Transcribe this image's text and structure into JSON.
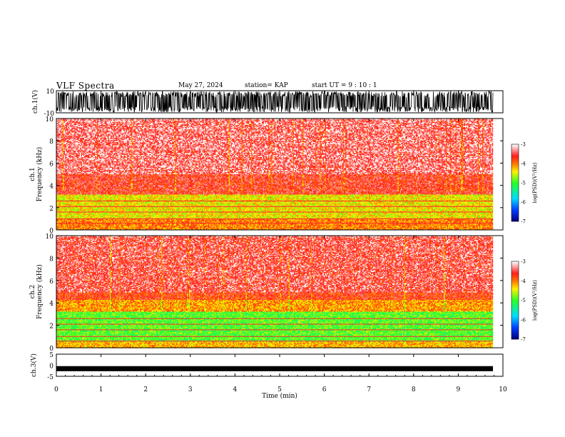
{
  "header": {
    "title": "VLF Spectra",
    "date": "May 27, 2024",
    "station": "station= KAP",
    "start": "start  UT  =   9  : 10 : 1"
  },
  "chart_data": [
    {
      "type": "line",
      "panel": "waveform-ch1",
      "ylabel": "ch.1(V)",
      "ylim": [
        -10,
        10
      ],
      "yticks": [
        "10",
        "-10"
      ],
      "xlim": [
        0,
        10
      ],
      "description_of_signal": "dense noise filling most of range"
    },
    {
      "type": "heatmap",
      "panel": "spectrogram-ch1",
      "ylabel_line1": "ch.1",
      "ylabel_line2": "Frequency  (kHz)",
      "ylim": [
        0,
        10
      ],
      "yticks": [
        "0",
        "2",
        "4",
        "6",
        "8",
        "10"
      ],
      "xlim": [
        0,
        10
      ],
      "colorbar": {
        "label": "log(PSD)(V²/Hz)",
        "range": [
          -7,
          -3
        ],
        "ticks": [
          "-3",
          "-4",
          "-5",
          "-6",
          "-7"
        ]
      },
      "bands_khz": [
        {
          "from": 0,
          "to": 1.0,
          "level": -4.0
        },
        {
          "from": 1.0,
          "to": 3.2,
          "level": -4.4
        },
        {
          "from": 3.2,
          "to": 10,
          "level": -3.6
        }
      ]
    },
    {
      "type": "heatmap",
      "panel": "spectrogram-ch2",
      "ylabel_line1": "ch.2",
      "ylabel_line2": "Frequency  (kHz)",
      "ylim": [
        0,
        10
      ],
      "yticks": [
        "0",
        "2",
        "4",
        "6",
        "8",
        "10"
      ],
      "xlim": [
        0,
        10
      ],
      "colorbar": {
        "label": "log(PSD)(V²/Hz)",
        "range": [
          -7,
          -3
        ],
        "ticks": [
          "-3",
          "-4",
          "-5",
          "-6",
          "-7"
        ]
      },
      "bands_khz": [
        {
          "from": 0,
          "to": 0.6,
          "level": -4.2
        },
        {
          "from": 0.6,
          "to": 3.3,
          "level": -4.9
        },
        {
          "from": 3.3,
          "to": 4.3,
          "level": -4.1
        },
        {
          "from": 4.3,
          "to": 10,
          "level": -3.7
        }
      ]
    },
    {
      "type": "line",
      "panel": "waveform-ch3",
      "ylabel": "ch.3(V)",
      "ylim": [
        -5,
        5
      ],
      "yticks": [
        "5",
        "0",
        "-5"
      ],
      "xlim": [
        0,
        10
      ],
      "xticks": [
        "0",
        "1",
        "2",
        "3",
        "4",
        "5",
        "6",
        "7",
        "8",
        "9",
        "10"
      ],
      "xlabel": "Time  (min)"
    }
  ],
  "colors": {
    "red": "#ff1a1a",
    "yellow": "#ffee00",
    "green": "#22ff22",
    "axis": "#000000"
  }
}
